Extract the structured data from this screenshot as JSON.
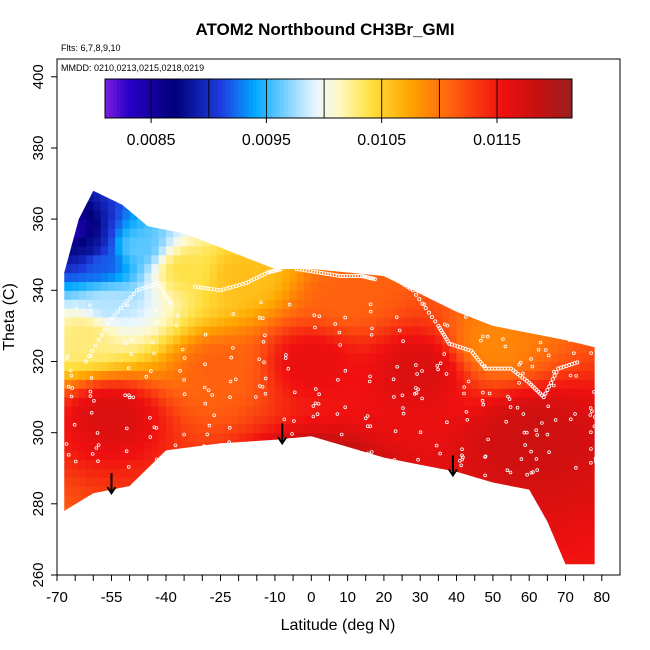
{
  "title": "ATOM2 Northbound CH3Br_GMI",
  "flights_note": "Flts: 6,7,8,9,10",
  "dates_note": "MMDD: 0210,0213,0215,0218,0219",
  "chart_data": {
    "type": "heatmap",
    "title": "ATOM2 Northbound CH3Br_GMI",
    "xlabel": "Latitude (deg N)",
    "ylabel": "Theta (C)",
    "xlim": [
      -70,
      85
    ],
    "ylim": [
      260,
      405
    ],
    "x_ticks": [
      -70,
      -55,
      -40,
      -25,
      -10,
      0,
      10,
      20,
      30,
      40,
      50,
      60,
      70,
      80
    ],
    "x_tick_labels": [
      "-70",
      "-55",
      "-40",
      "-25",
      "-10",
      "0",
      "10",
      "20",
      "30",
      "40",
      "50",
      "60",
      "70",
      "80"
    ],
    "x_minor_ticks": [
      -65,
      -60,
      -50,
      -45,
      -35,
      -30,
      -20,
      -15,
      -5,
      5,
      15,
      25,
      35,
      45,
      55,
      65,
      75
    ],
    "y_ticks": [
      260,
      280,
      300,
      320,
      340,
      360,
      380,
      400
    ],
    "y_tick_labels": [
      "260",
      "280",
      "300",
      "320",
      "340",
      "360",
      "380",
      "400"
    ],
    "colorbar": {
      "range": [
        0.0081,
        0.01215
      ],
      "ticks": [
        0.0085,
        0.0095,
        0.0105,
        0.0115
      ],
      "tick_labels": [
        "0.0085",
        "0.0095",
        "0.0105",
        "0.0115"
      ],
      "placement": "top"
    },
    "upper_boundary": [
      [
        -68,
        345
      ],
      [
        -64,
        360
      ],
      [
        -60,
        368
      ],
      [
        -52,
        364
      ],
      [
        -45,
        358
      ],
      [
        -35,
        356
      ],
      [
        -25,
        352
      ],
      [
        -20,
        350
      ],
      [
        -10,
        346
      ],
      [
        0,
        346
      ],
      [
        10,
        345
      ],
      [
        20,
        344
      ],
      [
        30,
        339
      ],
      [
        40,
        334
      ],
      [
        50,
        330
      ],
      [
        60,
        328
      ],
      [
        70,
        326
      ],
      [
        78,
        324
      ]
    ],
    "lower_boundary": [
      [
        -68,
        278
      ],
      [
        -60,
        283
      ],
      [
        -50,
        285
      ],
      [
        -40,
        295
      ],
      [
        -25,
        297
      ],
      [
        -10,
        298
      ],
      [
        0,
        299
      ],
      [
        10,
        296
      ],
      [
        20,
        293
      ],
      [
        30,
        291
      ],
      [
        40,
        289
      ],
      [
        50,
        286
      ],
      [
        60,
        284
      ],
      [
        65,
        275
      ],
      [
        70,
        263
      ],
      [
        78,
        263
      ]
    ],
    "value_field": [
      {
        "lat": -66,
        "theta": 356,
        "value": 0.0084
      },
      {
        "lat": -62,
        "theta": 352,
        "value": 0.0088
      },
      {
        "lat": -58,
        "theta": 348,
        "value": 0.0092
      },
      {
        "lat": -56,
        "theta": 336,
        "value": 0.0098
      },
      {
        "lat": -62,
        "theta": 328,
        "value": 0.0103
      },
      {
        "lat": -48,
        "theta": 352,
        "value": 0.0096
      },
      {
        "lat": -35,
        "theta": 346,
        "value": 0.0104
      },
      {
        "lat": -20,
        "theta": 344,
        "value": 0.0106
      },
      {
        "lat": 10,
        "theta": 338,
        "value": 0.0111
      },
      {
        "lat": 50,
        "theta": 325,
        "value": 0.0109
      },
      {
        "lat": -25,
        "theta": 318,
        "value": 0.0111
      },
      {
        "lat": 0,
        "theta": 320,
        "value": 0.0116
      },
      {
        "lat": 30,
        "theta": 318,
        "value": 0.0117
      },
      {
        "lat": -55,
        "theta": 305,
        "value": 0.0117
      },
      {
        "lat": 60,
        "theta": 300,
        "value": 0.0118
      },
      {
        "lat": 0,
        "theta": 285,
        "value": 0.0121
      }
    ],
    "arrows": [
      {
        "lat": -55,
        "theta": 283
      },
      {
        "lat": -8,
        "theta": 297
      },
      {
        "lat": 39,
        "theta": 288
      }
    ],
    "flight_tracks": [
      [
        [
          -62,
          320
        ],
        [
          -55,
          332
        ],
        [
          -48,
          340
        ],
        [
          -42,
          342
        ],
        [
          -38,
          335
        ]
      ],
      [
        [
          -32,
          341
        ],
        [
          -25,
          340
        ],
        [
          -18,
          342
        ],
        [
          -12,
          345
        ],
        [
          -8,
          346
        ]
      ],
      [
        [
          -4,
          346
        ],
        [
          2,
          345
        ],
        [
          8,
          344
        ],
        [
          14,
          344
        ],
        [
          18,
          343
        ]
      ],
      [
        [
          22,
          344
        ],
        [
          28,
          340
        ],
        [
          35,
          330
        ],
        [
          38,
          325
        ],
        [
          44,
          323
        ],
        [
          48,
          318
        ],
        [
          55,
          318
        ],
        [
          60,
          314
        ],
        [
          64,
          310
        ],
        [
          68,
          318
        ],
        [
          74,
          320
        ]
      ]
    ],
    "grid": false
  }
}
